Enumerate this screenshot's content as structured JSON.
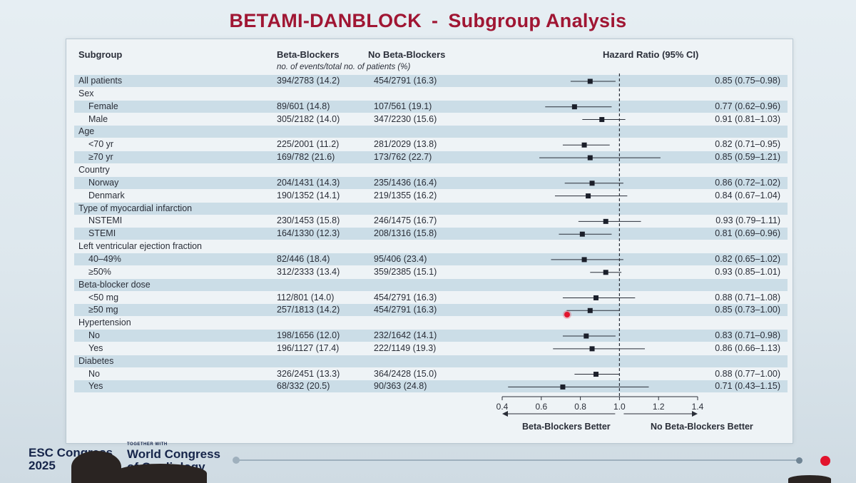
{
  "slide": {
    "title_left": "BETAMI-DANBLOCK",
    "title_sep": "-",
    "title_right": "Subgroup Analysis"
  },
  "table": {
    "headers": {
      "subgroup": "Subgroup",
      "beta": "Beta-Blockers",
      "no_beta": "No Beta-Blockers",
      "hr": "Hazard Ratio (95% CI)",
      "events_note": "no. of events/total no. of patients (%)"
    }
  },
  "rows": [
    {
      "type": "data",
      "label": "All patients",
      "indent": false,
      "bb": "394/2783 (14.2)",
      "nbb": "454/2791 (16.3)",
      "hr_text": "0.85 (0.75–0.98)"
    },
    {
      "type": "group",
      "label": "Sex"
    },
    {
      "type": "data",
      "label": "Female",
      "indent": true,
      "bb": "89/601 (14.8)",
      "nbb": "107/561 (19.1)",
      "hr_text": "0.77 (0.62–0.96)"
    },
    {
      "type": "data",
      "label": "Male",
      "indent": true,
      "bb": "305/2182 (14.0)",
      "nbb": "347/2230 (15.6)",
      "hr_text": "0.91 (0.81–1.03)"
    },
    {
      "type": "group",
      "label": "Age"
    },
    {
      "type": "data",
      "label": "<70 yr",
      "indent": true,
      "bb": "225/2001 (11.2)",
      "nbb": "281/2029 (13.8)",
      "hr_text": "0.82 (0.71–0.95)"
    },
    {
      "type": "data",
      "label": "≥70 yr",
      "indent": true,
      "bb": "169/782 (21.6)",
      "nbb": "173/762 (22.7)",
      "hr_text": "0.85 (0.59–1.21)"
    },
    {
      "type": "group",
      "label": "Country"
    },
    {
      "type": "data",
      "label": "Norway",
      "indent": true,
      "bb": "204/1431 (14.3)",
      "nbb": "235/1436 (16.4)",
      "hr_text": "0.86 (0.72–1.02)"
    },
    {
      "type": "data",
      "label": "Denmark",
      "indent": true,
      "bb": "190/1352 (14.1)",
      "nbb": "219/1355 (16.2)",
      "hr_text": "0.84 (0.67–1.04)"
    },
    {
      "type": "group",
      "label": "Type of myocardial infarction"
    },
    {
      "type": "data",
      "label": "NSTEMI",
      "indent": true,
      "bb": "230/1453 (15.8)",
      "nbb": "246/1475 (16.7)",
      "hr_text": "0.93 (0.79–1.11)"
    },
    {
      "type": "data",
      "label": "STEMI",
      "indent": true,
      "bb": "164/1330 (12.3)",
      "nbb": "208/1316 (15.8)",
      "hr_text": "0.81 (0.69–0.96)"
    },
    {
      "type": "group",
      "label": "Left ventricular ejection fraction"
    },
    {
      "type": "data",
      "label": "40–49%",
      "indent": true,
      "bb": "82/446 (18.4)",
      "nbb": "95/406 (23.4)",
      "hr_text": "0.82 (0.65–1.02)"
    },
    {
      "type": "data",
      "label": "≥50%",
      "indent": true,
      "bb": "312/2333 (13.4)",
      "nbb": "359/2385 (15.1)",
      "hr_text": "0.93 (0.85–1.01)"
    },
    {
      "type": "group",
      "label": "Beta-blocker dose"
    },
    {
      "type": "data",
      "label": "<50 mg",
      "indent": true,
      "bb": "112/801 (14.0)",
      "nbb": "454/2791 (16.3)",
      "hr_text": "0.88 (0.71–1.08)"
    },
    {
      "type": "data",
      "label": "≥50 mg",
      "indent": true,
      "bb": "257/1813 (14.2)",
      "nbb": "454/2791 (16.3)",
      "hr_text": "0.85 (0.73–1.00)"
    },
    {
      "type": "group",
      "label": "Hypertension"
    },
    {
      "type": "data",
      "label": "No",
      "indent": true,
      "bb": "198/1656 (12.0)",
      "nbb": "232/1642 (14.1)",
      "hr_text": "0.83 (0.71–0.98)"
    },
    {
      "type": "data",
      "label": "Yes",
      "indent": true,
      "bb": "196/1127 (17.4)",
      "nbb": "222/1149 (19.3)",
      "hr_text": "0.86 (0.66–1.13)"
    },
    {
      "type": "group",
      "label": "Diabetes"
    },
    {
      "type": "data",
      "label": "No",
      "indent": true,
      "bb": "326/2451 (13.3)",
      "nbb": "364/2428 (15.0)",
      "hr_text": "0.88 (0.77–1.00)"
    },
    {
      "type": "data",
      "label": "Yes",
      "indent": true,
      "bb": "68/332 (20.5)",
      "nbb": "90/363 (24.8)",
      "hr_text": "0.71 (0.43–1.15)"
    }
  ],
  "chart_data": {
    "type": "forest",
    "title": "BETAMI-DANBLOCK - Subgroup Analysis",
    "xlabel": "Hazard Ratio (95% CI)",
    "x_ticks": [
      0.4,
      0.6,
      0.8,
      1.0,
      1.2,
      1.4
    ],
    "x_tick_labels": [
      "0.4",
      "0.6",
      "0.8",
      "1.0",
      "1.2",
      "1.4"
    ],
    "xlim": [
      0.4,
      1.4
    ],
    "reference_line": 1.0,
    "left_direction_label": "Beta-Blockers Better",
    "right_direction_label": "No Beta-Blockers Better",
    "series": [
      {
        "label": "All patients",
        "hr": 0.85,
        "lo": 0.75,
        "hi": 0.98
      },
      {
        "label": "Female",
        "hr": 0.77,
        "lo": 0.62,
        "hi": 0.96
      },
      {
        "label": "Male",
        "hr": 0.91,
        "lo": 0.81,
        "hi": 1.03
      },
      {
        "label": "<70 yr",
        "hr": 0.82,
        "lo": 0.71,
        "hi": 0.95
      },
      {
        "label": "≥70 yr",
        "hr": 0.85,
        "lo": 0.59,
        "hi": 1.21
      },
      {
        "label": "Norway",
        "hr": 0.86,
        "lo": 0.72,
        "hi": 1.02
      },
      {
        "label": "Denmark",
        "hr": 0.84,
        "lo": 0.67,
        "hi": 1.04
      },
      {
        "label": "NSTEMI",
        "hr": 0.93,
        "lo": 0.79,
        "hi": 1.11
      },
      {
        "label": "STEMI",
        "hr": 0.81,
        "lo": 0.69,
        "hi": 0.96
      },
      {
        "label": "40–49%",
        "hr": 0.82,
        "lo": 0.65,
        "hi": 1.02
      },
      {
        "label": "≥50%",
        "hr": 0.93,
        "lo": 0.85,
        "hi": 1.01
      },
      {
        "label": "<50 mg",
        "hr": 0.88,
        "lo": 0.71,
        "hi": 1.08
      },
      {
        "label": "≥50 mg",
        "hr": 0.85,
        "lo": 0.73,
        "hi": 1.0
      },
      {
        "label": "Hypertension No",
        "hr": 0.83,
        "lo": 0.71,
        "hi": 0.98
      },
      {
        "label": "Hypertension Yes",
        "hr": 0.86,
        "lo": 0.66,
        "hi": 1.13
      },
      {
        "label": "Diabetes No",
        "hr": 0.88,
        "lo": 0.77,
        "hi": 1.0
      },
      {
        "label": "Diabetes Yes",
        "hr": 0.71,
        "lo": 0.43,
        "hi": 1.15
      }
    ]
  },
  "footer": {
    "esc_line1": "ESC Congress",
    "esc_line2": "2025",
    "together_text": "TOGETHER WITH",
    "wcc_line1": "World Congress",
    "wcc_line2": "of Cardiology"
  },
  "colors": {
    "title": "#a01633",
    "marker": "#1b1f2a",
    "shade": "#cbdde7",
    "accent_dot": "#e2142d"
  }
}
